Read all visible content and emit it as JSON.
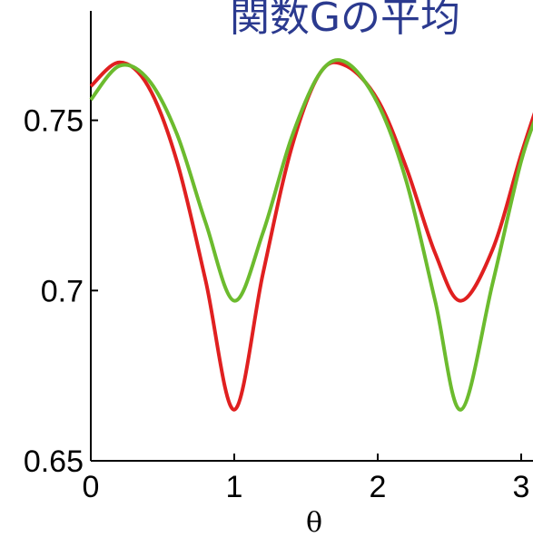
{
  "chart_data": {
    "type": "line",
    "title": "関数Gの平均",
    "xlabel": "θ",
    "ylabel": "",
    "xlim": [
      0,
      3.14
    ],
    "ylim": [
      0.65,
      0.78
    ],
    "xticks": [
      "0",
      "1",
      "2",
      "3"
    ],
    "yticks": [
      "0.65",
      "0.7",
      "0.75"
    ],
    "grid": false,
    "colors": {
      "title": "#2b3a8f",
      "red_series": "#e02020",
      "green_series": "#6cbb2e",
      "axis": "#000000"
    },
    "series": [
      {
        "color": "#e02020",
        "x": [
          0,
          0.2,
          0.4,
          0.6,
          0.8,
          1.0,
          1.2,
          1.4,
          1.6,
          1.78,
          2.0,
          2.2,
          2.4,
          2.58,
          2.8,
          3.0,
          3.14
        ],
        "y": [
          0.76,
          0.767,
          0.76,
          0.738,
          0.703,
          0.665,
          0.705,
          0.742,
          0.764,
          0.766,
          0.756,
          0.736,
          0.711,
          0.697,
          0.712,
          0.74,
          0.758
        ]
      },
      {
        "color": "#6cbb2e",
        "x": [
          0,
          0.2,
          0.4,
          0.6,
          0.8,
          1.0,
          1.2,
          1.4,
          1.6,
          1.78,
          2.0,
          2.2,
          2.4,
          2.58,
          2.8,
          3.0,
          3.14
        ],
        "y": [
          0.756,
          0.766,
          0.762,
          0.746,
          0.72,
          0.697,
          0.717,
          0.745,
          0.764,
          0.767,
          0.755,
          0.732,
          0.697,
          0.665,
          0.702,
          0.738,
          0.755
        ]
      }
    ]
  }
}
